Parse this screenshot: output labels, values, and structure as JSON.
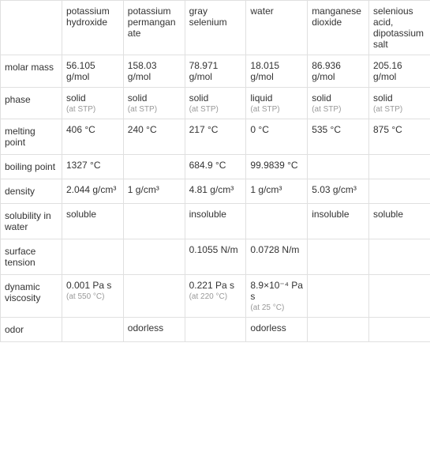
{
  "table": {
    "columns": [
      "",
      "potassium hydroxide",
      "potassium permanganate",
      "gray selenium",
      "water",
      "manganese dioxide",
      "selenious acid, dipotassium salt"
    ],
    "rows": [
      {
        "label": "molar mass",
        "values": [
          "56.105 g/mol",
          "158.03 g/mol",
          "78.971 g/mol",
          "18.015 g/mol",
          "86.936 g/mol",
          "205.16 g/mol"
        ],
        "notes": [
          "",
          "",
          "",
          "",
          "",
          ""
        ]
      },
      {
        "label": "phase",
        "values": [
          "solid",
          "solid",
          "solid",
          "liquid",
          "solid",
          "solid"
        ],
        "notes": [
          "(at STP)",
          "(at STP)",
          "(at STP)",
          "(at STP)",
          "(at STP)",
          "(at STP)"
        ]
      },
      {
        "label": "melting point",
        "values": [
          "406 °C",
          "240 °C",
          "217 °C",
          "0 °C",
          "535 °C",
          "875 °C"
        ],
        "notes": [
          "",
          "",
          "",
          "",
          "",
          ""
        ]
      },
      {
        "label": "boiling point",
        "values": [
          "1327 °C",
          "",
          "684.9 °C",
          "99.9839 °C",
          "",
          ""
        ],
        "notes": [
          "",
          "",
          "",
          "",
          "",
          ""
        ]
      },
      {
        "label": "density",
        "values": [
          "2.044 g/cm³",
          "1 g/cm³",
          "4.81 g/cm³",
          "1 g/cm³",
          "5.03 g/cm³",
          ""
        ],
        "notes": [
          "",
          "",
          "",
          "",
          "",
          ""
        ]
      },
      {
        "label": "solubility in water",
        "values": [
          "soluble",
          "",
          "insoluble",
          "",
          "insoluble",
          "soluble"
        ],
        "notes": [
          "",
          "",
          "",
          "",
          "",
          ""
        ]
      },
      {
        "label": "surface tension",
        "values": [
          "",
          "",
          "0.1055 N/m",
          "0.0728 N/m",
          "",
          ""
        ],
        "notes": [
          "",
          "",
          "",
          "",
          "",
          ""
        ]
      },
      {
        "label": "dynamic viscosity",
        "values": [
          "0.001 Pa s",
          "",
          "0.221 Pa s",
          "8.9×10⁻⁴ Pa s",
          "",
          ""
        ],
        "notes": [
          "(at 550 °C)",
          "",
          "(at 220 °C)",
          "(at 25 °C)",
          "",
          ""
        ]
      },
      {
        "label": "odor",
        "values": [
          "",
          "odorless",
          "",
          "odorless",
          "",
          ""
        ],
        "notes": [
          "",
          "",
          "",
          "",
          "",
          ""
        ]
      }
    ],
    "border_color": "#e0e0e0",
    "text_color": "#333333",
    "note_color": "#999999",
    "background_color": "#ffffff"
  }
}
